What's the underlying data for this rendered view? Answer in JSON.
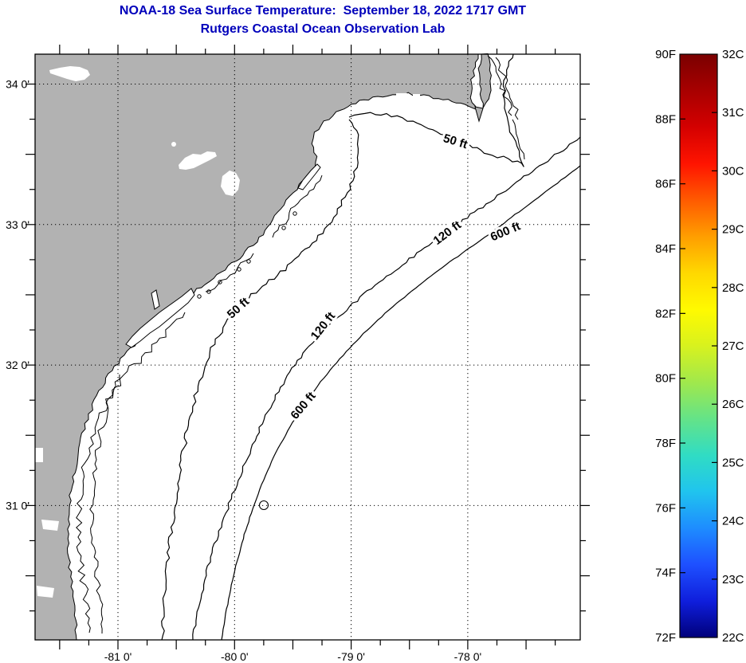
{
  "header": {
    "title": "NOAA-18 Sea Surface Temperature:  September 18, 2022 1717 GMT",
    "subtitle": "Rutgers Coastal Ocean Observation Lab"
  },
  "map": {
    "x_axis": {
      "ticks": [
        {
          "lon": -81,
          "label": "-81 0'"
        },
        {
          "lon": -80,
          "label": "-80 0'"
        },
        {
          "lon": -79,
          "label": "-79 0'"
        },
        {
          "lon": -78,
          "label": "-78 0'"
        }
      ]
    },
    "y_axis": {
      "ticks": [
        {
          "lat": 34,
          "label": "34 0'"
        },
        {
          "lat": 33,
          "label": "33 0'"
        },
        {
          "lat": 32,
          "label": "32 0'"
        },
        {
          "lat": 31,
          "label": "31 0'"
        }
      ]
    },
    "contour_labels": [
      {
        "id": "50ft-north",
        "text": "50 ft"
      },
      {
        "id": "120ft-upper",
        "text": "120 ft"
      },
      {
        "id": "600ft-upper",
        "text": "600 ft"
      },
      {
        "id": "50ft-south",
        "text": "50 ft"
      },
      {
        "id": "120ft-lower",
        "text": "120 ft"
      },
      {
        "id": "600ft-lower",
        "text": "600 ft"
      }
    ],
    "land_color": "#b2b2b2",
    "ocean_color": "#ffffff",
    "line_color": "#000000"
  },
  "colorbar": {
    "f_ticks": [
      {
        "value": 90,
        "label": "90F"
      },
      {
        "value": 88,
        "label": "88F"
      },
      {
        "value": 86,
        "label": "86F"
      },
      {
        "value": 84,
        "label": "84F"
      },
      {
        "value": 82,
        "label": "82F"
      },
      {
        "value": 80,
        "label": "80F"
      },
      {
        "value": 78,
        "label": "78F"
      },
      {
        "value": 76,
        "label": "76F"
      },
      {
        "value": 74,
        "label": "74F"
      },
      {
        "value": 72,
        "label": "72F"
      }
    ],
    "c_ticks": [
      {
        "value": 32,
        "label": "32C"
      },
      {
        "value": 31,
        "label": "31C"
      },
      {
        "value": 30,
        "label": "30C"
      },
      {
        "value": 29,
        "label": "29C"
      },
      {
        "value": 28,
        "label": "28C"
      },
      {
        "value": 27,
        "label": "27C"
      },
      {
        "value": 26,
        "label": "26C"
      },
      {
        "value": 25,
        "label": "25C"
      },
      {
        "value": 24,
        "label": "24C"
      },
      {
        "value": 23,
        "label": "23C"
      },
      {
        "value": 22,
        "label": "22C"
      }
    ],
    "gradient_top_to_bottom": [
      "#7a0000",
      "#a80000",
      "#d40000",
      "#ff1400",
      "#ff5a00",
      "#ff9e00",
      "#ffd800",
      "#fffa00",
      "#d8f21e",
      "#a0e84c",
      "#64e388",
      "#30dcc4",
      "#20c4ee",
      "#1e8cff",
      "#1e50ff",
      "#0f1edc",
      "#00007a"
    ]
  },
  "chart_data": {
    "type": "map",
    "title": "NOAA-18 Sea Surface Temperature:  September 18, 2022 1717 GMT",
    "subtitle": "Rutgers Coastal Ocean Observation Lab",
    "lon_tick_values_deg": [
      -81,
      -80,
      -79,
      -78
    ],
    "lat_tick_values_deg": [
      34,
      33,
      32,
      31
    ],
    "depth_contours_ft": [
      50,
      120,
      600
    ],
    "colorbar_scale": {
      "fahrenheit_range": [
        72,
        90
      ],
      "celsius_range": [
        22,
        32
      ],
      "fahrenheit_tick_step": 2,
      "celsius_tick_step": 1,
      "colormap": "jet (dark red top to dark blue bottom)"
    },
    "grid": "dotted graticule at whole degrees"
  }
}
